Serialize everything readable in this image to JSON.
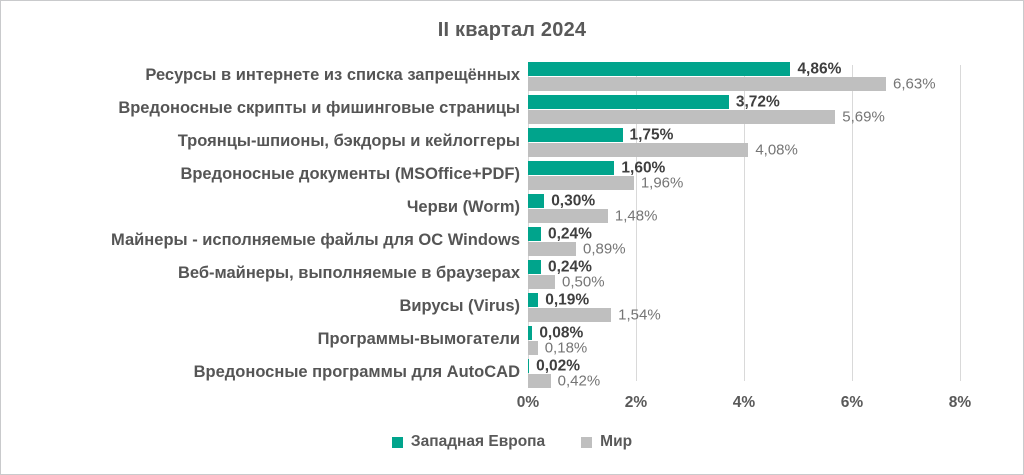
{
  "title": "II квартал 2024",
  "colors": {
    "west_europe": "#00a48c",
    "world": "#bfbfbf",
    "gridline": "#d9d9d9",
    "title_text": "#595959",
    "category_text": "#555555",
    "value_bold_text": "#3f3f3f",
    "value_gray_text": "#757575"
  },
  "x_axis": {
    "ticks": [
      "0%",
      "2%",
      "4%",
      "6%",
      "8%"
    ],
    "min": 0,
    "max": 8
  },
  "legend": [
    {
      "label": "Западная Европа",
      "color": "#00a48c"
    },
    {
      "label": "Мир",
      "color": "#bfbfbf"
    }
  ],
  "chart_data": {
    "type": "bar",
    "orientation": "horizontal",
    "title": "II квартал 2024",
    "xlabel": "",
    "ylabel": "",
    "xlim": [
      0,
      8
    ],
    "grid": true,
    "legend_position": "bottom",
    "categories": [
      "Ресурсы в интернете из списка запрещённых",
      "Вредоносные скрипты и фишинговые страницы",
      "Троянцы-шпионы, бэкдоры и кейлоггеры",
      "Вредоносные документы (MSOffice+PDF)",
      "Черви (Worm)",
      "Майнеры - исполняемые файлы для ОС Windows",
      "Веб-майнеры, выполняемые в браузерах",
      "Вирусы (Virus)",
      "Программы-вымогатели",
      "Вредоносные программы для AutoCAD"
    ],
    "series": [
      {
        "name": "Западная Европа",
        "color": "#00a48c",
        "values": [
          4.86,
          3.72,
          1.75,
          1.6,
          0.3,
          0.24,
          0.24,
          0.19,
          0.08,
          0.02
        ],
        "labels": [
          "4,86%",
          "3,72%",
          "1,75%",
          "1,60%",
          "0,30%",
          "0,24%",
          "0,24%",
          "0,19%",
          "0,08%",
          "0,02%"
        ]
      },
      {
        "name": "Мир",
        "color": "#bfbfbf",
        "values": [
          6.63,
          5.69,
          4.08,
          1.96,
          1.48,
          0.89,
          0.5,
          1.54,
          0.18,
          0.42
        ],
        "labels": [
          "6,63%",
          "5,69%",
          "4,08%",
          "1,96%",
          "1,48%",
          "0,89%",
          "0,50%",
          "1,54%",
          "0,18%",
          "0,42%"
        ]
      }
    ]
  }
}
